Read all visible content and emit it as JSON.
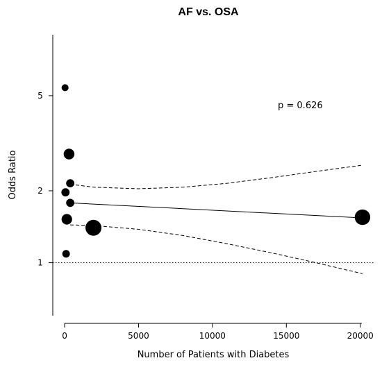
{
  "chart_data": {
    "type": "scatter",
    "title": "AF vs. OSA",
    "xlabel": "Number of Patients with Diabetes",
    "ylabel": "Odds Ratio",
    "y_scale": "log",
    "xlim": [
      -800,
      21000
    ],
    "ylim": [
      0.6,
      9.0
    ],
    "x_ticks": [
      0,
      5000,
      10000,
      15000,
      20000
    ],
    "x_tick_labels": [
      "0",
      "5000",
      "10000",
      "15000",
      "20000"
    ],
    "y_ticks": [
      1,
      2,
      5
    ],
    "y_tick_labels": [
      "1",
      "2",
      "5"
    ],
    "reference_line_y": 1,
    "annotation": "p =  0.626",
    "points": [
      {
        "x": 30,
        "y": 5.4,
        "weight": 1
      },
      {
        "x": 300,
        "y": 2.85,
        "weight": 2.4
      },
      {
        "x": 380,
        "y": 2.15,
        "weight": 1.4
      },
      {
        "x": 60,
        "y": 1.97,
        "weight": 1.4
      },
      {
        "x": 380,
        "y": 1.78,
        "weight": 1.4
      },
      {
        "x": 150,
        "y": 1.52,
        "weight": 2.3
      },
      {
        "x": 1950,
        "y": 1.4,
        "weight": 5.3
      },
      {
        "x": 100,
        "y": 1.09,
        "weight": 1.2
      },
      {
        "x": 20150,
        "y": 1.55,
        "weight": 5.0
      }
    ],
    "fit_line": {
      "x": [
        380,
        20150
      ],
      "y": [
        1.78,
        1.54
      ]
    },
    "ci_upper": {
      "x": [
        380,
        2000,
        5000,
        8000,
        11000,
        14000,
        17000,
        20150
      ],
      "y": [
        2.13,
        2.07,
        2.04,
        2.07,
        2.15,
        2.27,
        2.41,
        2.56
      ]
    },
    "ci_lower": {
      "x": [
        380,
        2000,
        5000,
        8000,
        11000,
        14000,
        17000,
        20150
      ],
      "y": [
        1.44,
        1.43,
        1.38,
        1.3,
        1.2,
        1.1,
        1.0,
        0.9
      ]
    }
  }
}
